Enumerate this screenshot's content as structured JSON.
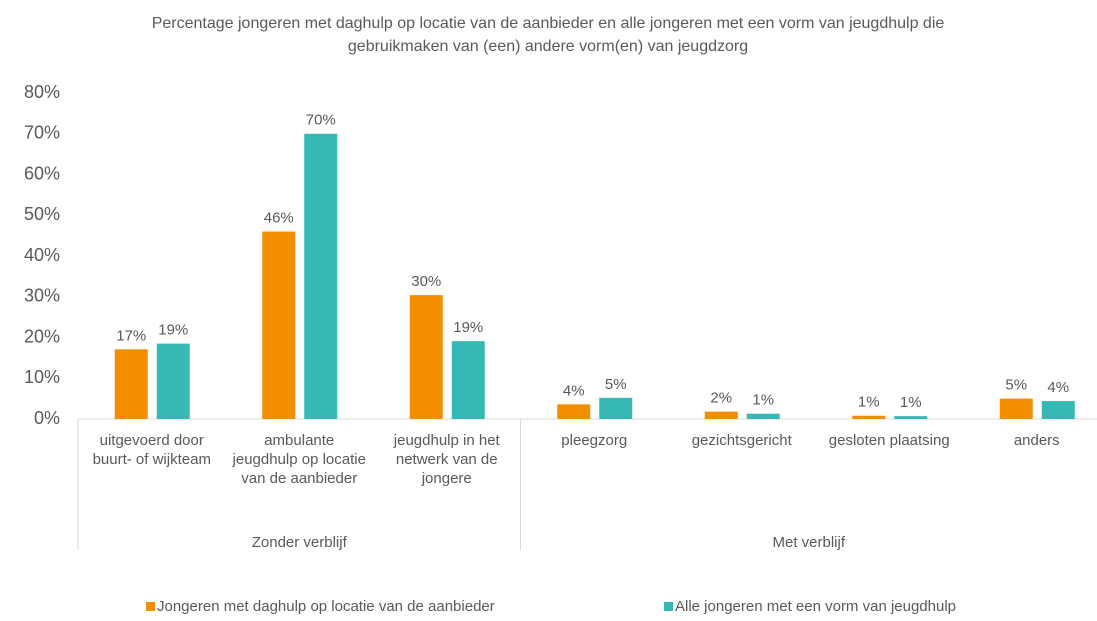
{
  "chart_data": {
    "type": "bar",
    "title": "Percentage jongeren met daghulp op locatie van de aanbieder en alle jongeren met een vorm van jeugdhulp die gebruikmaken van (een) andere vorm(en) van jeugdzorg",
    "categories": [
      "uitgevoerd door buurt- of wijkteam",
      "ambulante jeugdhulp op locatie van de aanbieder",
      "jeugdhulp in het netwerk van de jongere",
      "pleegzorg",
      "gezichtsgericht",
      "gesloten plaatsing",
      "anders"
    ],
    "groups": [
      {
        "label": "Zonder verblijf",
        "count": 3
      },
      {
        "label": "Met verblijf",
        "count": 4
      }
    ],
    "series": [
      {
        "name": "Jongeren met daghulp op locatie van de aanbieder",
        "color": "#f28e00",
        "values": [
          17.1,
          46,
          30.4,
          3.6,
          1.8,
          0.8,
          5.0
        ],
        "value_labels": [
          "17%",
          "46%",
          "30%",
          "4%",
          "2%",
          "1%",
          "5%"
        ]
      },
      {
        "name": "Alle jongeren met een vorm van jeugdhulp",
        "color": "#36b8b5",
        "values": [
          18.5,
          70,
          19.1,
          5.2,
          1.3,
          0.7,
          4.4
        ],
        "value_labels": [
          "19%",
          "70%",
          "19%",
          "5%",
          "1%",
          "1%",
          "4%"
        ]
      }
    ],
    "ylim": [
      0,
      80
    ],
    "yticks": [
      {
        "value": 0,
        "label": "0%"
      },
      {
        "value": 10,
        "label": "10%"
      },
      {
        "value": 20,
        "label": "20%"
      },
      {
        "value": 30,
        "label": "30%"
      },
      {
        "value": 40,
        "label": "40%"
      },
      {
        "value": 50,
        "label": "50%"
      },
      {
        "value": 60,
        "label": "60%"
      },
      {
        "value": 70,
        "label": "70%"
      },
      {
        "value": 80,
        "label": "80%"
      }
    ],
    "grid": false,
    "legend": "bottom"
  }
}
